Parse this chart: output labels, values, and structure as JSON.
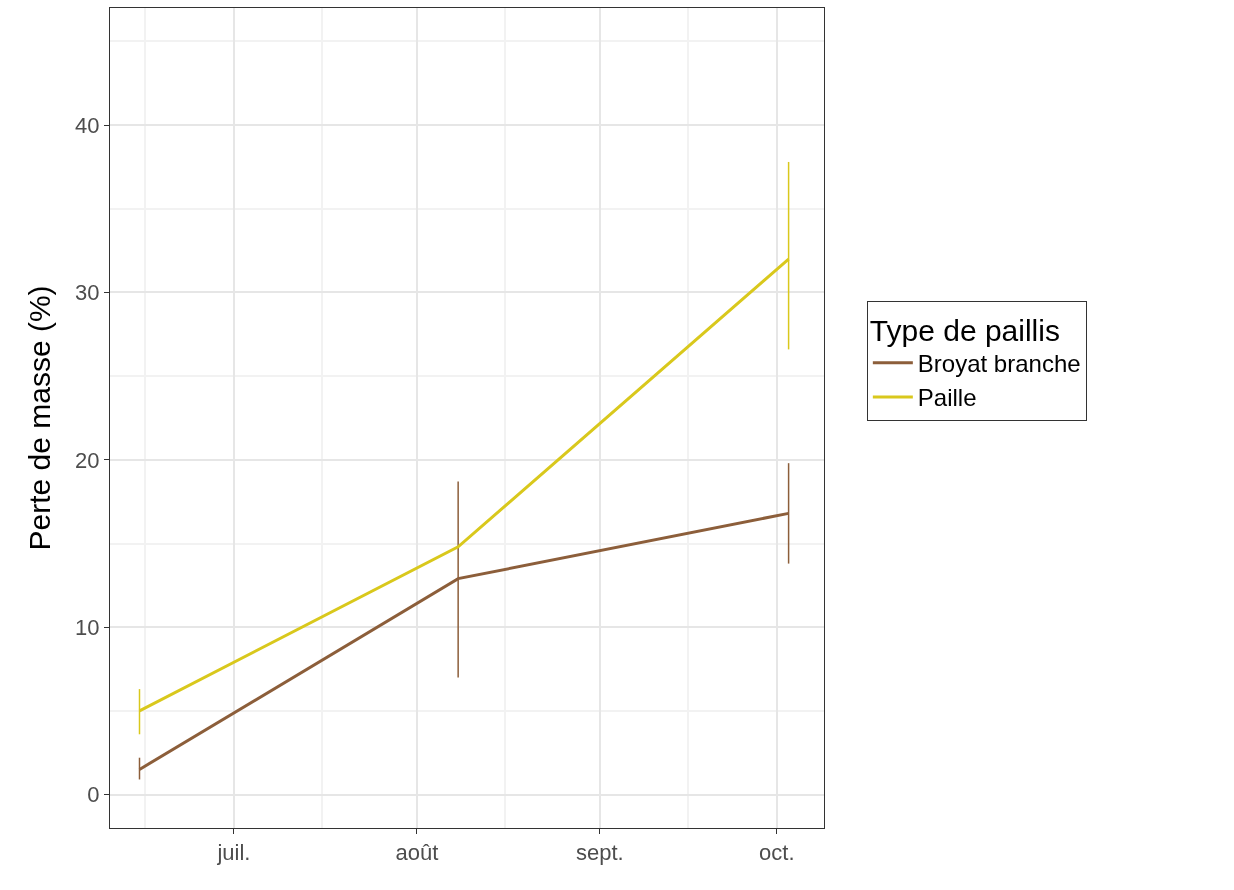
{
  "chart_data": {
    "type": "line",
    "ylabel": "Perte de masse (%)",
    "legend_title": "Type de paillis",
    "x": [
      "--06-15",
      "--08-08",
      "--10-03"
    ],
    "series": [
      {
        "name": "Broyat branche",
        "color": "#8c5e3a",
        "values": [
          1.5,
          12.9,
          16.8
        ],
        "errors": [
          [
            0.9,
            2.2
          ],
          [
            7.0,
            18.7
          ],
          [
            13.8,
            19.8
          ]
        ]
      },
      {
        "name": "Paille",
        "color": "#d9c81c",
        "values": [
          5.0,
          14.8,
          32.0
        ],
        "errors": [
          [
            3.6,
            6.3
          ],
          null,
          [
            26.6,
            37.8
          ]
        ]
      }
    ],
    "xlim": [
      "--06-10",
      "--10-09"
    ],
    "xticks": [
      {
        "value": "--07-01",
        "label": "juil."
      },
      {
        "value": "--08-01",
        "label": "août"
      },
      {
        "value": "--09-01",
        "label": "sept."
      },
      {
        "value": "--10-01",
        "label": "oct."
      }
    ],
    "ylim": [
      -2,
      47
    ],
    "yticks": [
      0,
      10,
      20,
      30,
      40
    ],
    "grid": true,
    "legend": "right",
    "marker": "none",
    "line_style": "solid"
  }
}
